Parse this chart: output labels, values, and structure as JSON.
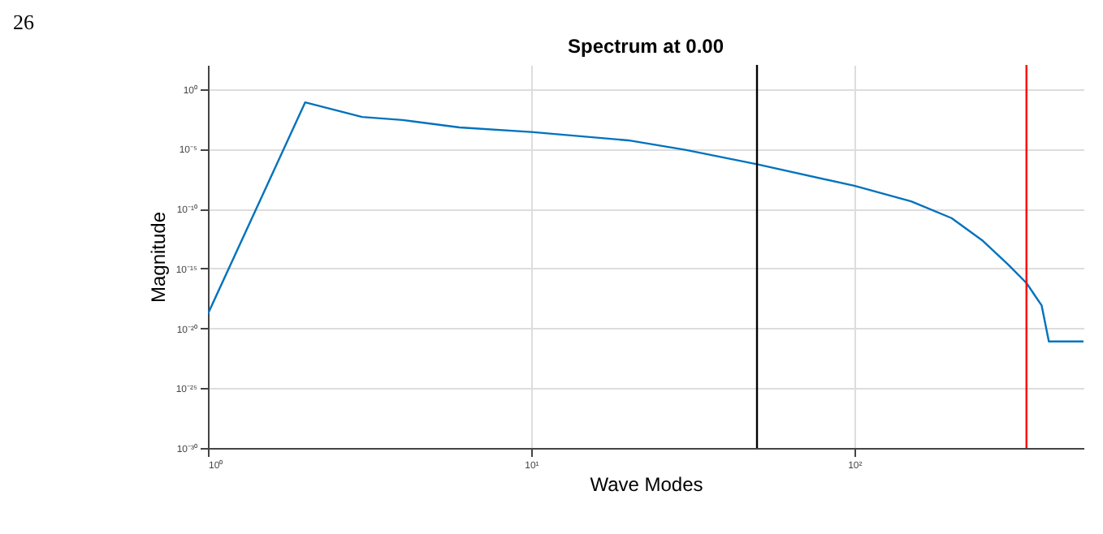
{
  "chart_data": {
    "type": "line",
    "title": "Spectrum at 0.00",
    "xlabel": "Wave Modes",
    "ylabel": "Magnitude",
    "annotations": [
      "26"
    ],
    "x": [
      1,
      2,
      3,
      4,
      6,
      10,
      20,
      30,
      50,
      100,
      150,
      200,
      250,
      300,
      341,
      380,
      400,
      450,
      512
    ],
    "series": [
      {
        "color": "#0072bd",
        "values": [
          1.6e-19,
          0.075,
          0.0045,
          0.0025,
          0.0006,
          0.00025,
          5e-05,
          8e-06,
          5e-07,
          8e-09,
          4e-10,
          1.6e-11,
          2e-13,
          2e-15,
          6e-17,
          8e-19,
          8e-22,
          8e-22,
          8e-22
        ]
      }
    ],
    "log": "xy",
    "xlim": [
      1,
      512
    ],
    "ylim": [
      1e-30,
      100
    ],
    "xticks": [
      {
        "value": 1,
        "label": "10⁰"
      },
      {
        "value": 10,
        "label": "10¹"
      },
      {
        "value": 100,
        "label": "10²"
      }
    ],
    "yticks": [
      {
        "value": 1e-30,
        "label": "10⁻³⁰"
      },
      {
        "value": 1e-25,
        "label": "10⁻²⁵"
      },
      {
        "value": 1e-20,
        "label": "10⁻²⁰"
      },
      {
        "value": 1e-15,
        "label": "10⁻¹⁵"
      },
      {
        "value": 1e-10,
        "label": "10⁻¹⁰"
      },
      {
        "value": 1e-05,
        "label": "10⁻⁵"
      },
      {
        "value": 1,
        "label": "10⁰"
      }
    ],
    "grid": true,
    "ref_lines": [
      {
        "axis": "x",
        "value": 50,
        "color": "#000000"
      },
      {
        "axis": "x",
        "value": 341,
        "color": "#ff0000"
      }
    ]
  }
}
